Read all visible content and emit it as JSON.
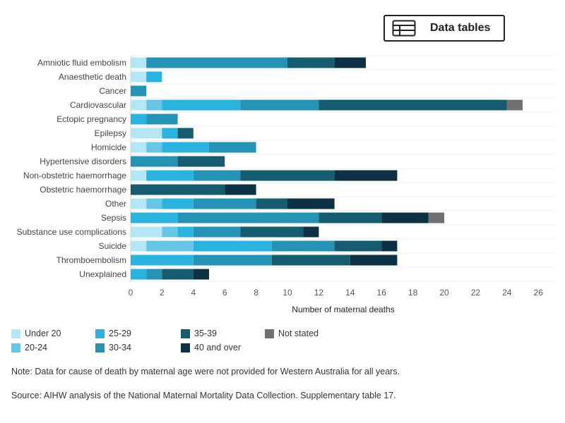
{
  "toolbar": {
    "data_tables_label": "Data tables",
    "data_tables_icon": "table-icon"
  },
  "chart_data": {
    "type": "bar",
    "orientation": "horizontal",
    "stacked": true,
    "categories": [
      "Amniotic fluid embolism",
      "Anaesthetic death",
      "Cancer",
      "Cardiovascular",
      "Ectopic pregnancy",
      "Epilepsy",
      "Homicide",
      "Hypertensive disorders",
      "Non-obstetric haemorrhage",
      "Obstetric haemorrhage",
      "Other",
      "Sepsis",
      "Substance use complications",
      "Suicide",
      "Thromboembolism",
      "Unexplained"
    ],
    "series": [
      {
        "name": "Under 20",
        "color": "#b4e6f5",
        "values": [
          1,
          1,
          0,
          1,
          0,
          2,
          1,
          0,
          1,
          0,
          1,
          0,
          2,
          1,
          0,
          0
        ]
      },
      {
        "name": "20-24",
        "color": "#66c6e6",
        "values": [
          0,
          0,
          0,
          1,
          0,
          0,
          1,
          0,
          0,
          0,
          1,
          0,
          1,
          3,
          0,
          0
        ]
      },
      {
        "name": "25-29",
        "color": "#2ab3de",
        "values": [
          0,
          1,
          0,
          5,
          1,
          1,
          3,
          0,
          3,
          0,
          2,
          3,
          1,
          5,
          4,
          1
        ]
      },
      {
        "name": "30-34",
        "color": "#2593b6",
        "values": [
          9,
          0,
          1,
          5,
          2,
          0,
          3,
          3,
          3,
          0,
          4,
          9,
          3,
          4,
          5,
          1
        ]
      },
      {
        "name": "35-39",
        "color": "#155c70",
        "values": [
          3,
          0,
          0,
          12,
          0,
          1,
          0,
          3,
          6,
          6,
          2,
          4,
          4,
          3,
          5,
          2
        ]
      },
      {
        "name": "40 and over",
        "color": "#0b3142",
        "values": [
          2,
          0,
          0,
          0,
          0,
          0,
          0,
          0,
          4,
          2,
          3,
          3,
          1,
          1,
          3,
          1
        ]
      },
      {
        "name": "Not stated",
        "color": "#707070",
        "values": [
          0,
          0,
          0,
          1,
          0,
          0,
          0,
          0,
          0,
          0,
          0,
          1,
          0,
          0,
          0,
          0
        ]
      }
    ],
    "xlabel": "Number of maternal deaths",
    "xlim": [
      0,
      26
    ],
    "xticks": [
      0,
      2,
      4,
      6,
      8,
      10,
      12,
      14,
      16,
      18,
      20,
      22,
      24,
      26
    ],
    "grid": true,
    "legend_position": "bottom-left"
  },
  "legend_items": [
    {
      "label": "Under 20",
      "color": "#b4e6f5"
    },
    {
      "label": "20-24",
      "color": "#66c6e6"
    },
    {
      "label": "25-29",
      "color": "#2ab3de"
    },
    {
      "label": "30-34",
      "color": "#2593b6"
    },
    {
      "label": "35-39",
      "color": "#155c70"
    },
    {
      "label": "40 and over",
      "color": "#0b3142"
    },
    {
      "label": "Not stated",
      "color": "#707070"
    }
  ],
  "note": "Note: Data for cause of death by maternal age were not provided for Western Australia for all years.",
  "source": "Source: AIHW analysis of the National Maternal Mortality Data Collection. Supplementary table 17."
}
